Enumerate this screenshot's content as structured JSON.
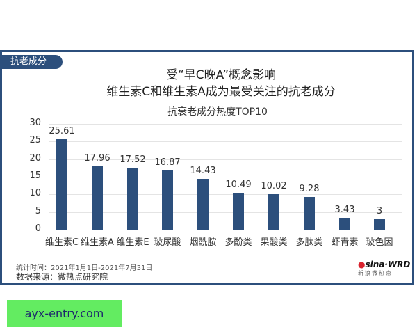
{
  "frame": {
    "tag": "抗老成分",
    "title_line1": "受“早C晚A”概念影响",
    "title_line2": "维生素C和维生素A成为最受关注的抗老成分",
    "subtitle": "抗衰老成分热度TOP10",
    "footer": {
      "period": "统计时间：2021年1月1日-2021年7月31日",
      "source": "数据来源：微热点研究院"
    },
    "logo": {
      "top": "sina·WRD",
      "bottom": "新浪微热点"
    }
  },
  "watermark": "ayx-entry.com",
  "colors": {
    "bar": "#2c4f7c",
    "frame": "#2c4f7c",
    "tag_bg": "#2c4f7c",
    "watermark_bg": "#63ec61",
    "watermark_text": "#1d2a6b"
  },
  "chart_data": {
    "type": "bar",
    "title": "抗衰老成分热度TOP10",
    "categories": [
      "维生素C",
      "维生素A",
      "维生素E",
      "玻尿酸",
      "烟酰胺",
      "多酚类",
      "果酸类",
      "多肽类",
      "虾青素",
      "玻色因"
    ],
    "values": [
      25.61,
      17.96,
      17.52,
      16.87,
      14.43,
      10.49,
      10.02,
      9.28,
      3.43,
      3
    ],
    "value_labels": [
      "25.61",
      "17.96",
      "17.52",
      "16.87",
      "14.43",
      "10.49",
      "10.02",
      "9.28",
      "3.43",
      "3"
    ],
    "xlabel": "",
    "ylabel": "",
    "ylim": [
      0,
      30
    ],
    "yticks": [
      "0",
      "5",
      "10",
      "15",
      "20",
      "25",
      "30"
    ],
    "grid": true,
    "legend": null
  }
}
